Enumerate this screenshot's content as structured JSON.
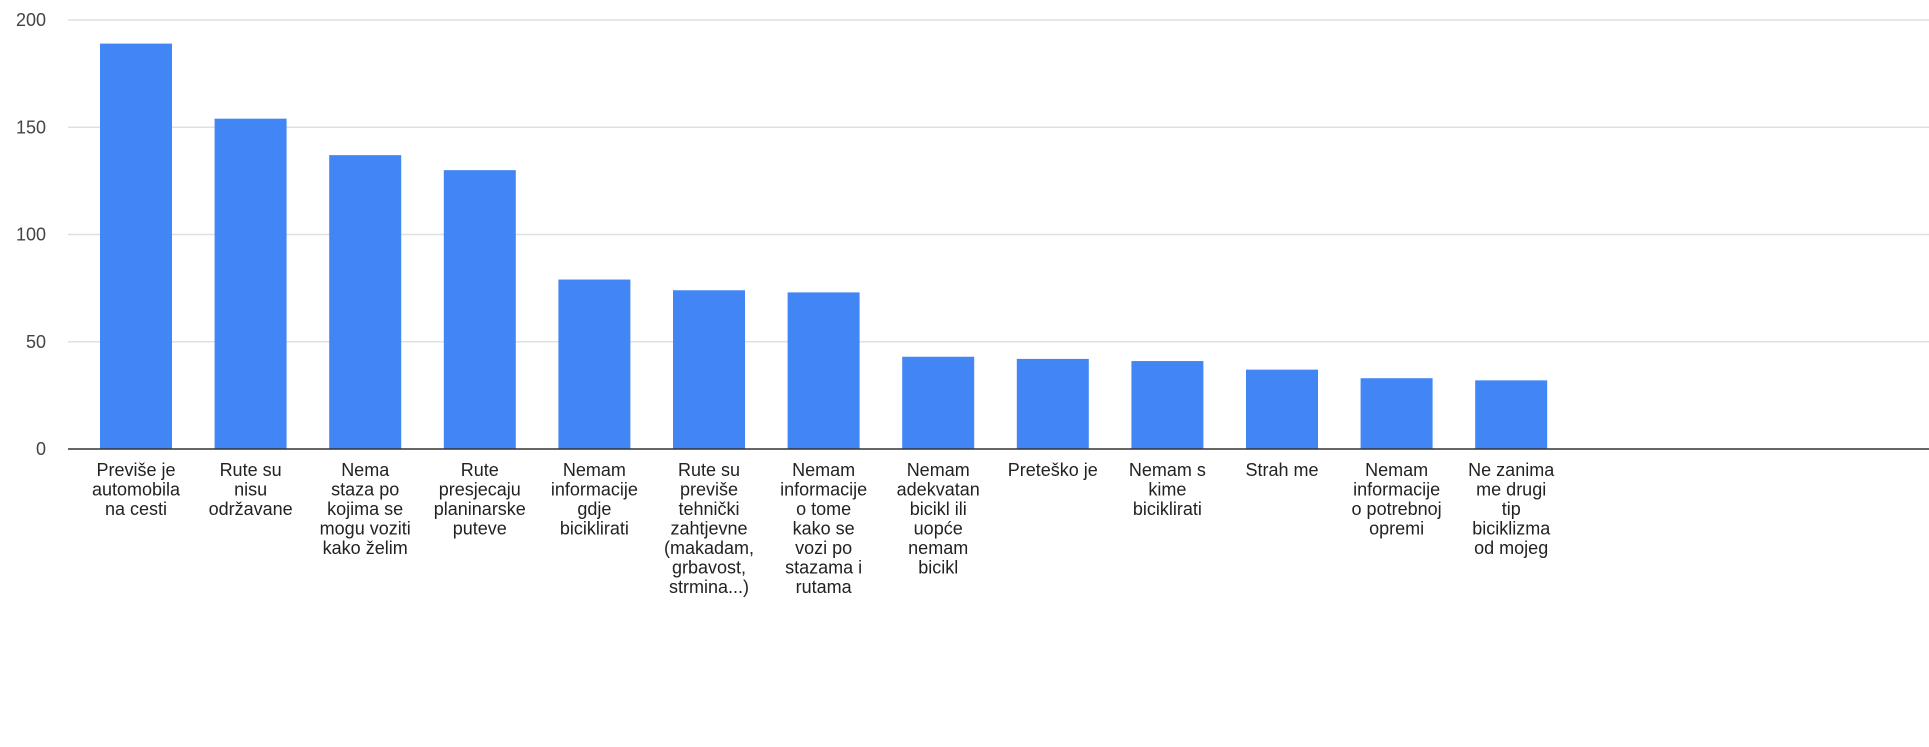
{
  "chart_data": {
    "type": "bar",
    "title": "",
    "xlabel": "",
    "ylabel": "",
    "ylim": [
      0,
      200
    ],
    "yticks": [
      0,
      50,
      100,
      150,
      200
    ],
    "grid": true,
    "legend": "none",
    "colors": {
      "bar": "#4285f4",
      "grid": "#e0e0e0",
      "axis": "#333333"
    },
    "categories": [
      "Previše je automobila na cesti",
      "Rute su nisu održavane",
      "Nema staza po kojima se mogu voziti kako želim",
      "Rute presjecaju planinarske puteve",
      "Nemam informacije gdje biciklirati",
      "Rute su previše tehnički zahtjevne (makadam, grbavost, strmina...)",
      "Nemam informacije o tome kako se vozi po stazama i rutama",
      "Nemam adekvatan bicikl ili uopće nemam bicikl",
      "Preteško je",
      "Nemam s kime biciklirati",
      "Strah me",
      "Nemam informacije o potrebnoj opremi",
      "Ne zanima me drugi tip biciklizma od mojeg"
    ],
    "category_lines": [
      [
        "Previše je",
        "automobila",
        "na cesti"
      ],
      [
        "Rute su",
        "nisu",
        "održavane"
      ],
      [
        "Nema",
        "staza po",
        "kojima se",
        "mogu voziti",
        "kako želim"
      ],
      [
        "Rute",
        "presjecaju",
        "planinarske",
        "puteve"
      ],
      [
        "Nemam",
        "informacije",
        "gdje",
        "biciklirati"
      ],
      [
        "Rute su",
        "previše",
        "tehnički",
        "zahtjevne",
        "(makadam,",
        "grbavost,",
        "strmina...)"
      ],
      [
        "Nemam",
        "informacije",
        "o tome",
        "kako se",
        "vozi po",
        "stazama i",
        "rutama"
      ],
      [
        "Nemam",
        "adekvatan",
        "bicikl ili",
        "uopće",
        "nemam",
        "bicikl"
      ],
      [
        "Preteško je"
      ],
      [
        "Nemam s",
        "kime",
        "biciklirati"
      ],
      [
        "Strah me"
      ],
      [
        "Nemam",
        "informacije",
        "o potrebnoj",
        "opremi"
      ],
      [
        "Ne zanima",
        "me drugi",
        "tip",
        "biciklizma",
        "od mojeg"
      ]
    ],
    "values": [
      189,
      154,
      137,
      130,
      79,
      74,
      73,
      43,
      42,
      41,
      37,
      33,
      32
    ]
  }
}
